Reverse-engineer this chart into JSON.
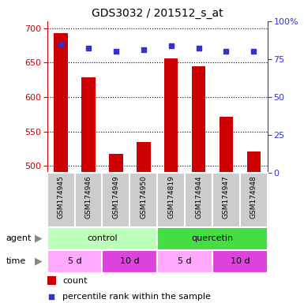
{
  "title": "GDS3032 / 201512_s_at",
  "samples": [
    "GSM174945",
    "GSM174946",
    "GSM174949",
    "GSM174950",
    "GSM174819",
    "GSM174944",
    "GSM174947",
    "GSM174948"
  ],
  "counts": [
    693,
    628,
    517,
    535,
    656,
    645,
    571,
    521
  ],
  "percentiles": [
    85,
    82,
    80,
    81,
    84,
    82,
    80,
    80
  ],
  "ylim_left": [
    490,
    710
  ],
  "ylim_right": [
    0,
    100
  ],
  "yticks_left": [
    500,
    550,
    600,
    650,
    700
  ],
  "yticks_right": [
    0,
    25,
    50,
    75,
    100
  ],
  "ytick_right_labels": [
    "0",
    "25",
    "50",
    "75",
    "100%"
  ],
  "bar_color": "#cc0000",
  "dot_color": "#3333cc",
  "bar_width": 0.5,
  "agent_groups": [
    {
      "label": "control",
      "start": 0,
      "end": 4,
      "color": "#bbffbb"
    },
    {
      "label": "quercetin",
      "start": 4,
      "end": 8,
      "color": "#44dd44"
    }
  ],
  "time_groups": [
    {
      "label": "5 d",
      "start": 0,
      "end": 2,
      "color": "#ffaaff"
    },
    {
      "label": "10 d",
      "start": 2,
      "end": 4,
      "color": "#dd44dd"
    },
    {
      "label": "5 d",
      "start": 4,
      "end": 6,
      "color": "#ffaaff"
    },
    {
      "label": "10 d",
      "start": 6,
      "end": 8,
      "color": "#dd44dd"
    }
  ],
  "legend_count_color": "#cc0000",
  "legend_dot_color": "#3333cc",
  "left_axis_color": "#cc0000",
  "right_axis_color": "#3333cc",
  "grid_color": "#000000",
  "sample_bg_color": "#cccccc",
  "sample_border_color": "#999999"
}
